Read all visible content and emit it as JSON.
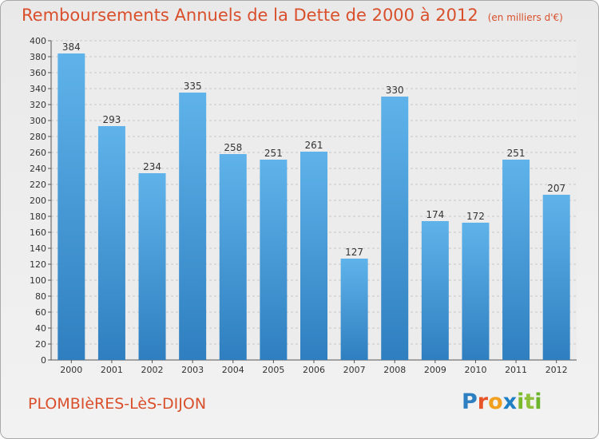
{
  "header": {
    "title": "Remboursements Annuels de la Dette de 2000 à 2012",
    "unit": "(en milliers d'€)"
  },
  "footer": {
    "city": "PLOMBIèRES-LèS-DIJON",
    "logo": {
      "letters": [
        "P",
        "r",
        "o",
        "x",
        "i",
        "t",
        "i"
      ],
      "colors": [
        "#2e7fc2",
        "#e8542a",
        "#f0a01e",
        "#1f7fc4",
        "#7ab929",
        "#8fc03a",
        "#6db42e"
      ]
    }
  },
  "colors": {
    "bar_light": "#5fb3ea",
    "bar_dark": "#2f7fc0",
    "title": "#d94f2b"
  },
  "chart_data": {
    "type": "bar",
    "title": "Remboursements Annuels de la Dette de 2000 à 2012",
    "subtitle": "(en milliers d'€)",
    "xlabel": "",
    "ylabel": "",
    "categories": [
      "2000",
      "2001",
      "2002",
      "2003",
      "2004",
      "2005",
      "2006",
      "2007",
      "2008",
      "2009",
      "2010",
      "2011",
      "2012"
    ],
    "values": [
      384,
      293,
      234,
      335,
      258,
      251,
      261,
      127,
      330,
      174,
      172,
      251,
      207
    ],
    "ylim": [
      0,
      400
    ],
    "ytick_step": 20,
    "grid": true,
    "legend": "none"
  }
}
